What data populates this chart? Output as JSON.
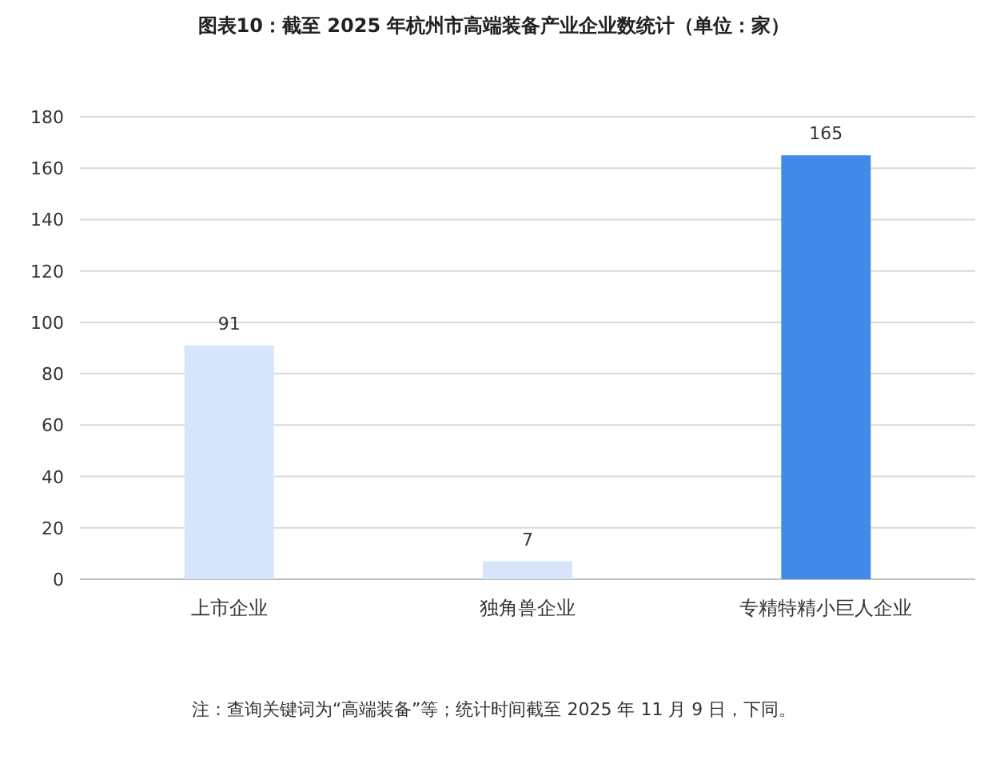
{
  "chart_data": {
    "type": "bar",
    "title": "图表10：截至 2025 年杭州市高端装备产业企业数统计（单位：家）",
    "categories": [
      "上市企业",
      "独角兽企业",
      "专精特精小巨人企业"
    ],
    "values": [
      91,
      7,
      165
    ],
    "colors": [
      "#d6e5fa",
      "#d6e5fa",
      "#418ae8"
    ],
    "ylim": [
      0,
      180
    ],
    "yticks": [
      0,
      20,
      40,
      60,
      80,
      100,
      120,
      140,
      160,
      180
    ],
    "grid": "y",
    "data_labels": true,
    "annotations": [
      "注：查询关键词为“高端装备”等；统计时间截至 2025 年 11 月 9 日，下同。"
    ]
  }
}
